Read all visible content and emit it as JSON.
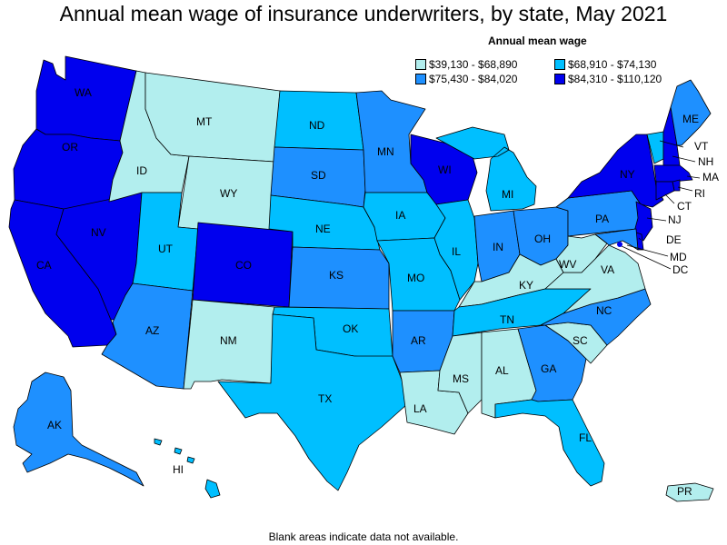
{
  "title": "Annual mean wage of insurance underwriters, by state, May 2021",
  "legend": {
    "title": "Annual mean wage",
    "items": [
      {
        "id": "b1",
        "label": "$39,130 - $68,890",
        "color": "#b2eeee"
      },
      {
        "id": "b2",
        "label": "$68,910 - $74,130",
        "color": "#00bfff"
      },
      {
        "id": "b3",
        "label": "$75,430 - $84,020",
        "color": "#1e90ff"
      },
      {
        "id": "b4",
        "label": "$84,310 - $110,120",
        "color": "#0000ee"
      }
    ]
  },
  "footnote": "Blank areas indicate data not available.",
  "states": {
    "WA": {
      "label": "WA",
      "bin": "b4"
    },
    "OR": {
      "label": "OR",
      "bin": "b4"
    },
    "CA": {
      "label": "CA",
      "bin": "b4"
    },
    "NV": {
      "label": "NV",
      "bin": "b4"
    },
    "ID": {
      "label": "ID",
      "bin": "b1"
    },
    "MT": {
      "label": "MT",
      "bin": "b1"
    },
    "WY": {
      "label": "WY",
      "bin": "b1"
    },
    "UT": {
      "label": "UT",
      "bin": "b2"
    },
    "AZ": {
      "label": "AZ",
      "bin": "b3"
    },
    "CO": {
      "label": "CO",
      "bin": "b4"
    },
    "NM": {
      "label": "NM",
      "bin": "b1"
    },
    "ND": {
      "label": "ND",
      "bin": "b2"
    },
    "SD": {
      "label": "SD",
      "bin": "b3"
    },
    "NE": {
      "label": "NE",
      "bin": "b2"
    },
    "KS": {
      "label": "KS",
      "bin": "b3"
    },
    "OK": {
      "label": "OK",
      "bin": "b2"
    },
    "TX": {
      "label": "TX",
      "bin": "b2"
    },
    "MN": {
      "label": "MN",
      "bin": "b3"
    },
    "IA": {
      "label": "IA",
      "bin": "b2"
    },
    "MO": {
      "label": "MO",
      "bin": "b2"
    },
    "AR": {
      "label": "AR",
      "bin": "b3"
    },
    "LA": {
      "label": "LA",
      "bin": "b1"
    },
    "WI": {
      "label": "WI",
      "bin": "b4"
    },
    "IL": {
      "label": "IL",
      "bin": "b2"
    },
    "MI": {
      "label": "MI",
      "bin": "b2"
    },
    "IN": {
      "label": "IN",
      "bin": "b3"
    },
    "OH": {
      "label": "OH",
      "bin": "b3"
    },
    "KY": {
      "label": "KY",
      "bin": "b1"
    },
    "TN": {
      "label": "TN",
      "bin": "b2"
    },
    "MS": {
      "label": "MS",
      "bin": "b1"
    },
    "AL": {
      "label": "AL",
      "bin": "b1"
    },
    "GA": {
      "label": "GA",
      "bin": "b3"
    },
    "FL": {
      "label": "FL",
      "bin": "b2"
    },
    "SC": {
      "label": "SC",
      "bin": "b1"
    },
    "NC": {
      "label": "NC",
      "bin": "b3"
    },
    "VA": {
      "label": "VA",
      "bin": "b1"
    },
    "WV": {
      "label": "WV",
      "bin": "b1"
    },
    "PA": {
      "label": "PA",
      "bin": "b3"
    },
    "NY": {
      "label": "NY",
      "bin": "b4"
    },
    "VT": {
      "label": "VT",
      "bin": "b2"
    },
    "NH": {
      "label": "NH",
      "bin": "b4"
    },
    "ME": {
      "label": "ME",
      "bin": "b3"
    },
    "MA": {
      "label": "MA",
      "bin": "b4"
    },
    "RI": {
      "label": "RI",
      "bin": "b4"
    },
    "CT": {
      "label": "CT",
      "bin": "b4"
    },
    "NJ": {
      "label": "NJ",
      "bin": "b4"
    },
    "DE": {
      "label": "DE",
      "bin": "b4"
    },
    "MD": {
      "label": "MD",
      "bin": "b3"
    },
    "DC": {
      "label": "DC",
      "bin": "b4"
    },
    "AK": {
      "label": "AK",
      "bin": "b3"
    },
    "HI": {
      "label": "HI",
      "bin": "b2"
    },
    "PR": {
      "label": "PR",
      "bin": "b1"
    }
  }
}
